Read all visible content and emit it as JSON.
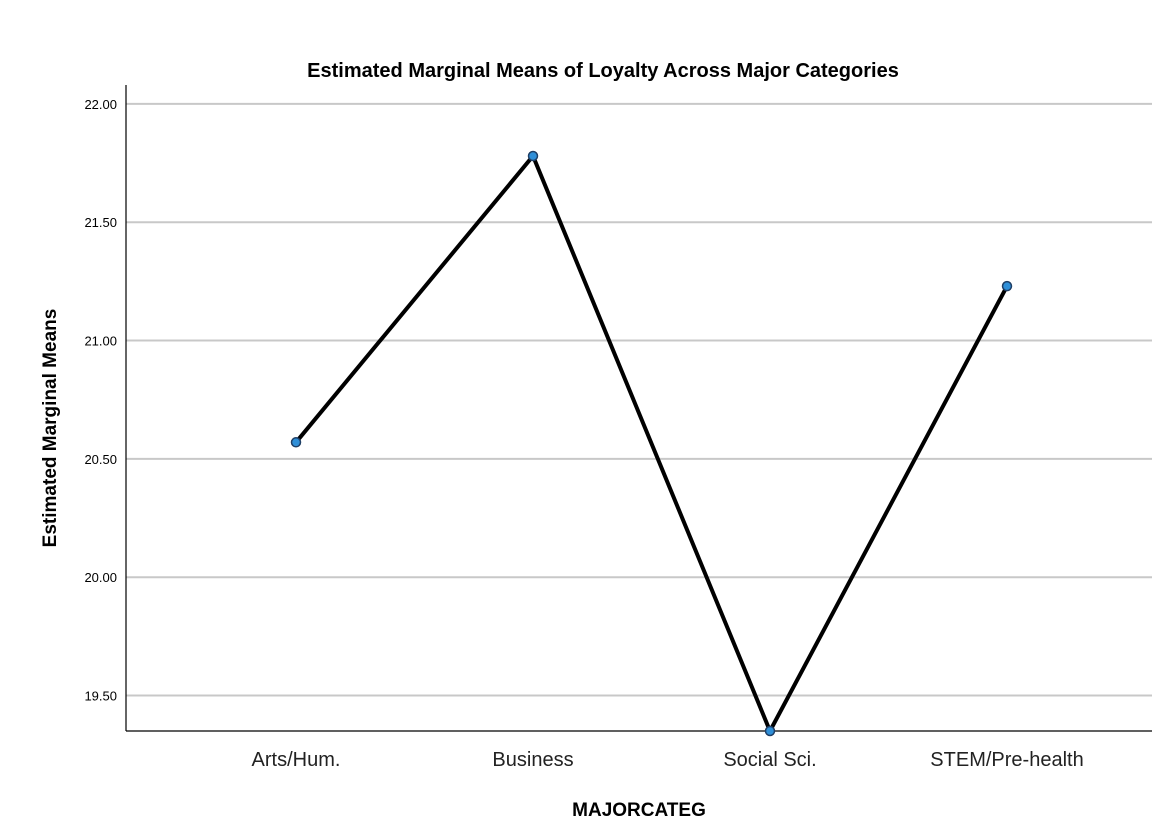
{
  "chart_data": {
    "type": "line",
    "title": "Estimated Marginal Means of Loyalty Across Major Categories",
    "xlabel": "MAJORCATEG",
    "ylabel": "Estimated Marginal Means",
    "categories": [
      "Arts/Hum.",
      "Business",
      "Social Sci.",
      "STEM/Pre-health"
    ],
    "series": [
      {
        "values": [
          20.57,
          21.78,
          19.35,
          21.23
        ]
      }
    ],
    "ylim": [
      19.35,
      22.08
    ],
    "yticks": [
      "19.50",
      "20.00",
      "20.50",
      "21.00",
      "21.50",
      "22.00"
    ],
    "grid": true,
    "legend": "none",
    "colors": {
      "line": "#000000",
      "marker_fill": "#2f8fd8",
      "marker_stroke": "#1f3f66",
      "grid": "#c8c8c8"
    }
  }
}
